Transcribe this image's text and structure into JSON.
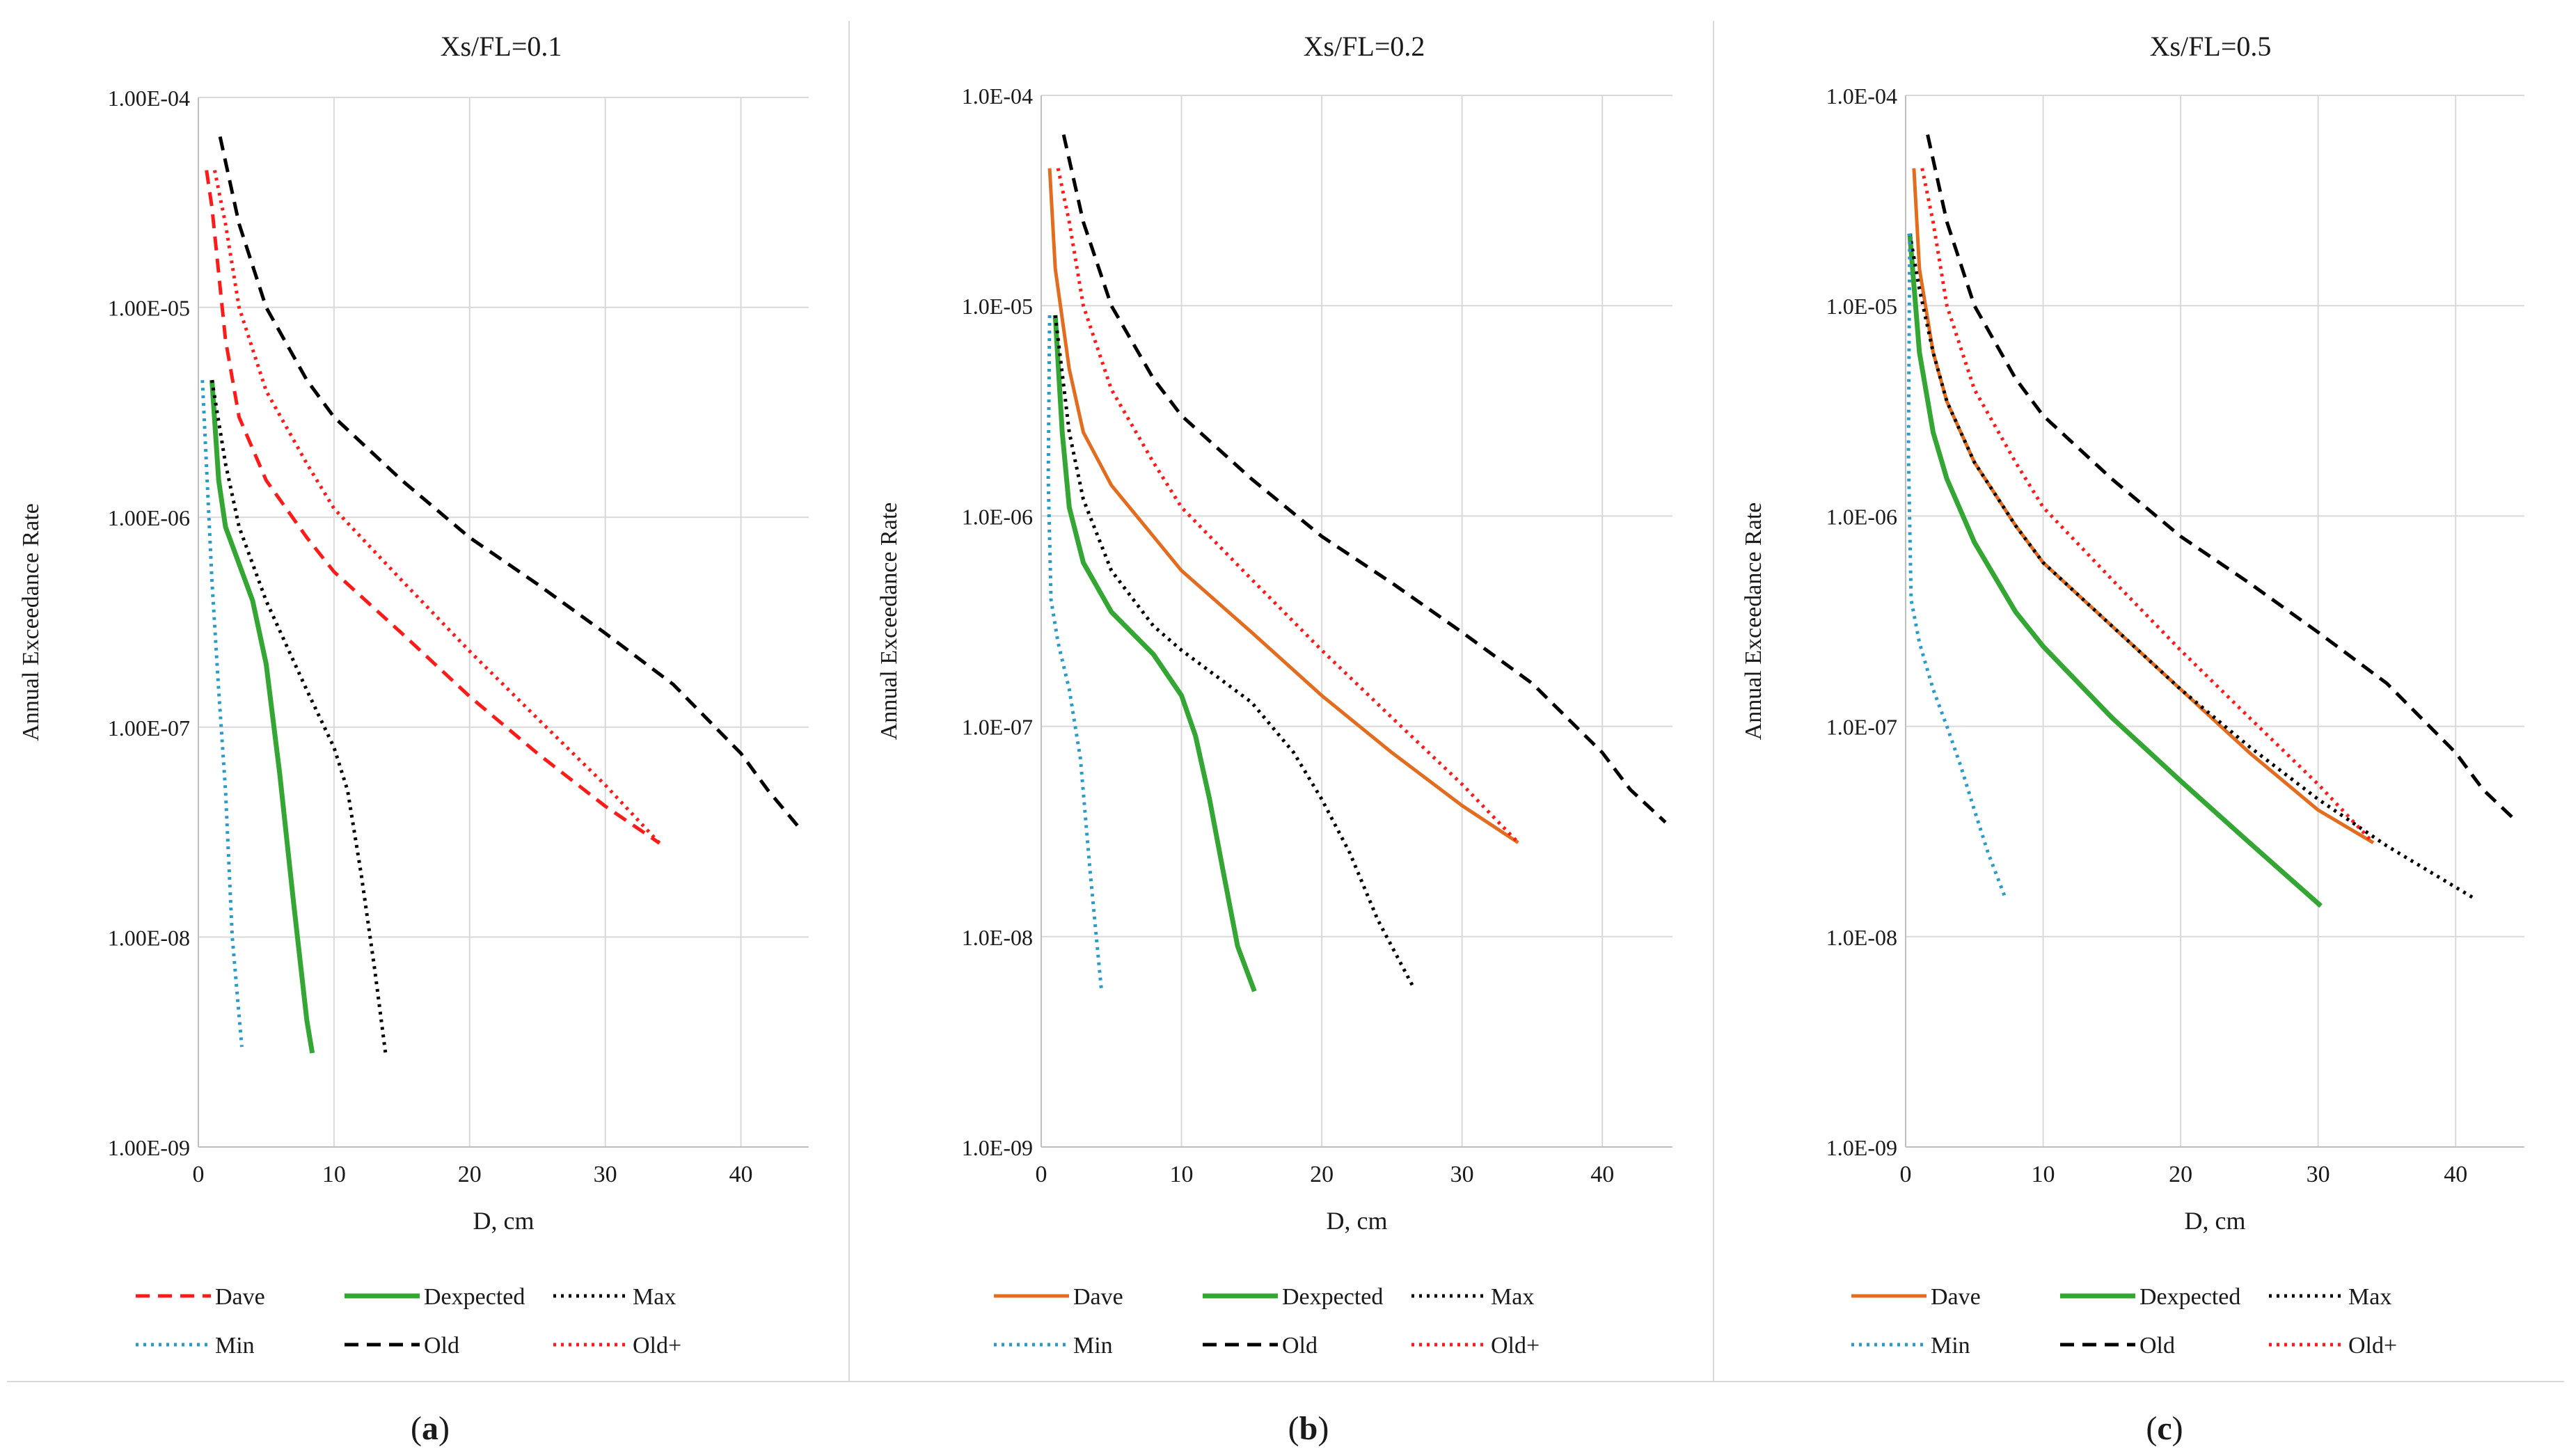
{
  "figure": {
    "panels": [
      {
        "label": "(a)",
        "letter": "a",
        "title": "Xs/FL=0.1"
      },
      {
        "label": "(b)",
        "letter": "b",
        "title": "Xs/FL=0.2"
      },
      {
        "label": "(c)",
        "letter": "c",
        "title": "Xs/FL=0.5"
      }
    ]
  },
  "chart_data": [
    {
      "type": "line",
      "title": "Xs/FL=0.1",
      "xlabel": "D, cm",
      "ylabel": "Annual Exceedance Rate",
      "xlim": [
        0,
        45
      ],
      "ylim": [
        1e-09,
        0.0001
      ],
      "yscale": "log",
      "grid": true,
      "legend_position": "bottom",
      "x_ticks": [
        "0",
        "10",
        "20",
        "30",
        "40"
      ],
      "y_ticks": [
        "1.00E-09",
        "1.00E-08",
        "1.00E-07",
        "1.00E-06",
        "1.00E-05",
        "1.00E-04"
      ],
      "series": [
        {
          "name": "Dave",
          "color": "#ff1a1a",
          "dash": "dashed",
          "x": [
            0.6,
            1,
            2,
            3,
            5,
            8,
            10,
            15,
            20,
            25,
            30,
            34
          ],
          "y": [
            4.5e-05,
            3e-05,
            7e-06,
            3e-06,
            1.5e-06,
            8e-07,
            5.5e-07,
            2.8e-07,
            1.4e-07,
            7.5e-08,
            4.2e-08,
            2.8e-08
          ]
        },
        {
          "name": "Dexpected",
          "color": "#33a633",
          "dash": "solid",
          "x": [
            1,
            1.5,
            2,
            3,
            4,
            5,
            6,
            7,
            8,
            8.4
          ],
          "y": [
            4.5e-06,
            1.5e-06,
            9e-07,
            6e-07,
            4e-07,
            2e-07,
            6e-08,
            1.5e-08,
            4e-09,
            2.8e-09
          ]
        },
        {
          "name": "Max",
          "color": "#000000",
          "dash": "dotted",
          "x": [
            1,
            2,
            3,
            5,
            8,
            10,
            11,
            12,
            13,
            13.8
          ],
          "y": [
            4.5e-06,
            1.8e-06,
            9e-07,
            4e-07,
            1.5e-07,
            8e-08,
            5e-08,
            2e-08,
            7e-09,
            2.8e-09
          ]
        },
        {
          "name": "Min",
          "color": "#2a9bc8",
          "dash": "dotted",
          "x": [
            0.3,
            1,
            1.5,
            2,
            2.5,
            3.2
          ],
          "y": [
            4.5e-06,
            5e-07,
            1.5e-07,
            5e-08,
            1e-08,
            3e-09
          ]
        },
        {
          "name": "Old",
          "color": "#000000",
          "dash": "dashed",
          "x": [
            1.6,
            3,
            5,
            8,
            10,
            15,
            20,
            25,
            30,
            35,
            40,
            42,
            44.5
          ],
          "y": [
            6.5e-05,
            2.5e-05,
            1e-05,
            4.5e-06,
            3e-06,
            1.5e-06,
            8e-07,
            4.8e-07,
            2.8e-07,
            1.6e-07,
            7.5e-08,
            5e-08,
            3.2e-08
          ]
        },
        {
          "name": "Old+",
          "color": "#ff1a1a",
          "dash": "dotted",
          "x": [
            1.2,
            2,
            3,
            5,
            8,
            10,
            15,
            20,
            25,
            30,
            34
          ],
          "y": [
            4.5e-05,
            2.5e-05,
            1e-05,
            4e-06,
            1.8e-06,
            1.1e-06,
            5e-07,
            2.3e-07,
            1.1e-07,
            5.3e-08,
            2.8e-08
          ]
        }
      ]
    },
    {
      "type": "line",
      "title": "Xs/FL=0.2",
      "xlabel": "D, cm",
      "ylabel": "Annual Exceedance Rate",
      "xlim": [
        0,
        45
      ],
      "ylim": [
        1e-09,
        0.0001
      ],
      "yscale": "log",
      "grid": true,
      "legend_position": "bottom",
      "x_ticks": [
        "0",
        "10",
        "20",
        "30",
        "40"
      ],
      "y_ticks": [
        "1.0E-09",
        "1.0E-08",
        "1.0E-07",
        "1.0E-06",
        "1.0E-05",
        "1.0E-04"
      ],
      "series": [
        {
          "name": "Dave",
          "color": "#e46c1e",
          "dash": "solid",
          "x": [
            0.6,
            1,
            2,
            3,
            5,
            8,
            10,
            15,
            20,
            25,
            30,
            34
          ],
          "y": [
            4.5e-05,
            1.5e-05,
            5e-06,
            2.5e-06,
            1.4e-06,
            8e-07,
            5.5e-07,
            2.8e-07,
            1.4e-07,
            7.5e-08,
            4.2e-08,
            2.8e-08
          ]
        },
        {
          "name": "Dexpected",
          "color": "#33a633",
          "dash": "solid",
          "x": [
            1,
            1.5,
            2,
            3,
            5,
            8,
            10,
            11,
            12,
            13,
            14,
            15.2
          ],
          "y": [
            9e-06,
            2.5e-06,
            1.1e-06,
            6e-07,
            3.5e-07,
            2.2e-07,
            1.4e-07,
            9e-08,
            4.5e-08,
            2e-08,
            9e-09,
            5.5e-09
          ]
        },
        {
          "name": "Max",
          "color": "#000000",
          "dash": "dotted",
          "x": [
            1,
            2,
            3,
            5,
            8,
            10,
            15,
            18,
            20,
            22,
            24,
            26.5
          ],
          "y": [
            9e-06,
            2.5e-06,
            1.2e-06,
            5.5e-07,
            3e-07,
            2.3e-07,
            1.3e-07,
            7.5e-08,
            4.5e-08,
            2.5e-08,
            1.2e-08,
            5.8e-09
          ]
        },
        {
          "name": "Min",
          "color": "#2a9bc8",
          "dash": "dotted",
          "x": [
            0.6,
            0.5,
            0.7,
            1.2,
            2,
            2.8,
            3.5,
            4.3
          ],
          "y": [
            9e-06,
            1.5e-06,
            4e-07,
            2.5e-07,
            1.5e-07,
            7e-08,
            2e-08,
            5.5e-09
          ]
        },
        {
          "name": "Old",
          "color": "#000000",
          "dash": "dashed",
          "x": [
            1.6,
            3,
            5,
            8,
            10,
            15,
            20,
            25,
            30,
            35,
            40,
            42,
            44.5
          ],
          "y": [
            6.5e-05,
            2.5e-05,
            1e-05,
            4.5e-06,
            3e-06,
            1.5e-06,
            8e-07,
            4.8e-07,
            2.8e-07,
            1.6e-07,
            7.5e-08,
            5e-08,
            3.5e-08
          ]
        },
        {
          "name": "Old+",
          "color": "#ff1a1a",
          "dash": "dotted",
          "x": [
            1.2,
            2,
            3,
            5,
            8,
            10,
            15,
            20,
            25,
            30,
            34
          ],
          "y": [
            4.5e-05,
            2.5e-05,
            1e-05,
            4e-06,
            1.8e-06,
            1.1e-06,
            5e-07,
            2.3e-07,
            1.1e-07,
            5.3e-08,
            2.8e-08
          ]
        }
      ]
    },
    {
      "type": "line",
      "title": "Xs/FL=0.5",
      "xlabel": "D, cm",
      "ylabel": "Annual Exceedance Rate",
      "xlim": [
        0,
        45
      ],
      "ylim": [
        1e-09,
        0.0001
      ],
      "yscale": "log",
      "grid": true,
      "legend_position": "bottom",
      "x_ticks": [
        "0",
        "10",
        "20",
        "30",
        "40"
      ],
      "y_ticks": [
        "1.0E-09",
        "1.0E-08",
        "1.0E-07",
        "1.0E-06",
        "1.0E-05",
        "1.0E-04"
      ],
      "series": [
        {
          "name": "Dave",
          "color": "#e46c1e",
          "dash": "solid",
          "x": [
            0.6,
            1,
            2,
            3,
            5,
            8,
            10,
            15,
            20,
            25,
            30,
            34
          ],
          "y": [
            4.5e-05,
            1.5e-05,
            6e-06,
            3.5e-06,
            1.8e-06,
            9e-07,
            6e-07,
            3e-07,
            1.5e-07,
            7.5e-08,
            4e-08,
            2.8e-08
          ]
        },
        {
          "name": "Dexpected",
          "color": "#33a633",
          "dash": "solid",
          "x": [
            0.3,
            1,
            2,
            3,
            5,
            8,
            10,
            15,
            20,
            25,
            30.2
          ],
          "y": [
            2.2e-05,
            6e-06,
            2.5e-06,
            1.5e-06,
            7.5e-07,
            3.5e-07,
            2.4e-07,
            1.1e-07,
            5.5e-08,
            2.8e-08,
            1.4e-08
          ]
        },
        {
          "name": "Max",
          "color": "#000000",
          "dash": "dotted",
          "x": [
            0.3,
            1,
            2,
            3,
            5,
            8,
            10,
            15,
            20,
            25,
            30,
            35,
            41.5
          ],
          "y": [
            2.2e-05,
            1.2e-05,
            6e-06,
            3.5e-06,
            1.8e-06,
            9e-07,
            6e-07,
            3e-07,
            1.5e-07,
            8e-08,
            4.5e-08,
            2.7e-08,
            1.5e-08
          ]
        },
        {
          "name": "Min",
          "color": "#2a9bc8",
          "dash": "dotted",
          "x": [
            0.3,
            0.2,
            0.4,
            1,
            2,
            3,
            4,
            5,
            6,
            7.3
          ],
          "y": [
            2.2e-05,
            2e-06,
            4e-07,
            2.5e-07,
            1.5e-07,
            1e-07,
            6.5e-08,
            4e-08,
            2.5e-08,
            1.5e-08
          ]
        },
        {
          "name": "Old",
          "color": "#000000",
          "dash": "dashed",
          "x": [
            1.6,
            3,
            5,
            8,
            10,
            15,
            20,
            25,
            30,
            35,
            40,
            42,
            44.5
          ],
          "y": [
            6.5e-05,
            2.5e-05,
            1e-05,
            4.5e-06,
            3e-06,
            1.5e-06,
            8e-07,
            4.8e-07,
            2.8e-07,
            1.6e-07,
            7.5e-08,
            5e-08,
            3.5e-08
          ]
        },
        {
          "name": "Old+",
          "color": "#ff1a1a",
          "dash": "dotted",
          "x": [
            1.2,
            2,
            3,
            5,
            8,
            10,
            15,
            20,
            25,
            30,
            34
          ],
          "y": [
            4.5e-05,
            2.5e-05,
            1e-05,
            4e-06,
            1.8e-06,
            1.1e-06,
            5e-07,
            2.3e-07,
            1.1e-07,
            5.3e-08,
            2.8e-08
          ]
        }
      ]
    }
  ]
}
